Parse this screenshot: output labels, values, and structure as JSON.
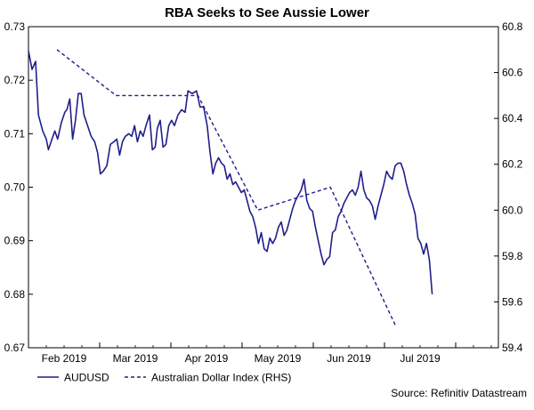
{
  "chart_data": {
    "type": "line",
    "title": "RBA Seeks to See Aussie Lower",
    "source": "Source: Refinitiv Datastream",
    "x_ticks": [
      "Feb 2019",
      "Mar 2019",
      "Apr 2019",
      "May 2019",
      "Jun 2019",
      "Jul 2019"
    ],
    "y_left": {
      "min": 0.67,
      "max": 0.73,
      "ticks": [
        "0.67",
        "0.68",
        "0.69",
        "0.70",
        "0.71",
        "0.72",
        "0.73"
      ]
    },
    "y_right": {
      "min": 59.4,
      "max": 60.8,
      "ticks": [
        "59.4",
        "59.6",
        "59.8",
        "60.0",
        "60.2",
        "60.4",
        "60.6",
        "60.8"
      ]
    },
    "legend": [
      {
        "label": "AUDUSD",
        "style": "solid"
      },
      {
        "label": "Australian Dollar Index (RHS)",
        "style": "dashed"
      }
    ],
    "colors": {
      "line": "#1f1f8c",
      "axis": "#000000",
      "text": "#000000"
    },
    "x_domain": [
      0,
      6.6
    ],
    "series": [
      {
        "name": "AUDUSD",
        "axis": "left",
        "points": [
          [
            0.0,
            0.7255
          ],
          [
            0.05,
            0.722
          ],
          [
            0.1,
            0.7235
          ],
          [
            0.14,
            0.7135
          ],
          [
            0.2,
            0.7105
          ],
          [
            0.25,
            0.709
          ],
          [
            0.28,
            0.707
          ],
          [
            0.33,
            0.709
          ],
          [
            0.37,
            0.7105
          ],
          [
            0.41,
            0.709
          ],
          [
            0.46,
            0.712
          ],
          [
            0.51,
            0.714
          ],
          [
            0.54,
            0.7145
          ],
          [
            0.58,
            0.7165
          ],
          [
            0.62,
            0.709
          ],
          [
            0.66,
            0.7125
          ],
          [
            0.7,
            0.7175
          ],
          [
            0.74,
            0.7175
          ],
          [
            0.78,
            0.7135
          ],
          [
            0.83,
            0.7115
          ],
          [
            0.88,
            0.7095
          ],
          [
            0.93,
            0.7085
          ],
          [
            0.97,
            0.7065
          ],
          [
            1.01,
            0.7025
          ],
          [
            1.05,
            0.703
          ],
          [
            1.1,
            0.704
          ],
          [
            1.15,
            0.708
          ],
          [
            1.2,
            0.7085
          ],
          [
            1.24,
            0.709
          ],
          [
            1.28,
            0.706
          ],
          [
            1.32,
            0.7085
          ],
          [
            1.36,
            0.7095
          ],
          [
            1.41,
            0.71
          ],
          [
            1.45,
            0.7095
          ],
          [
            1.49,
            0.7115
          ],
          [
            1.53,
            0.7085
          ],
          [
            1.57,
            0.7105
          ],
          [
            1.61,
            0.7095
          ],
          [
            1.65,
            0.7115
          ],
          [
            1.7,
            0.7135
          ],
          [
            1.74,
            0.707
          ],
          [
            1.78,
            0.7075
          ],
          [
            1.81,
            0.711
          ],
          [
            1.85,
            0.7125
          ],
          [
            1.89,
            0.7075
          ],
          [
            1.93,
            0.708
          ],
          [
            1.97,
            0.7115
          ],
          [
            2.01,
            0.7125
          ],
          [
            2.05,
            0.7115
          ],
          [
            2.1,
            0.7135
          ],
          [
            2.15,
            0.7145
          ],
          [
            2.2,
            0.714
          ],
          [
            2.24,
            0.718
          ],
          [
            2.3,
            0.7175
          ],
          [
            2.36,
            0.718
          ],
          [
            2.41,
            0.715
          ],
          [
            2.46,
            0.715
          ],
          [
            2.51,
            0.7115
          ],
          [
            2.55,
            0.7065
          ],
          [
            2.59,
            0.7025
          ],
          [
            2.63,
            0.7045
          ],
          [
            2.67,
            0.7055
          ],
          [
            2.71,
            0.7045
          ],
          [
            2.75,
            0.704
          ],
          [
            2.79,
            0.7015
          ],
          [
            2.83,
            0.7025
          ],
          [
            2.87,
            0.7005
          ],
          [
            2.91,
            0.701
          ],
          [
            2.95,
            0.7
          ],
          [
            2.99,
            0.699
          ],
          [
            3.03,
            0.6995
          ],
          [
            3.07,
            0.6975
          ],
          [
            3.11,
            0.6955
          ],
          [
            3.15,
            0.6945
          ],
          [
            3.19,
            0.6925
          ],
          [
            3.23,
            0.6895
          ],
          [
            3.27,
            0.6915
          ],
          [
            3.31,
            0.6885
          ],
          [
            3.35,
            0.688
          ],
          [
            3.39,
            0.6905
          ],
          [
            3.43,
            0.6895
          ],
          [
            3.47,
            0.6905
          ],
          [
            3.51,
            0.6925
          ],
          [
            3.55,
            0.6935
          ],
          [
            3.59,
            0.691
          ],
          [
            3.63,
            0.692
          ],
          [
            3.67,
            0.694
          ],
          [
            3.71,
            0.696
          ],
          [
            3.75,
            0.6975
          ],
          [
            3.79,
            0.6985
          ],
          [
            3.83,
            0.6995
          ],
          [
            3.87,
            0.7015
          ],
          [
            3.91,
            0.6975
          ],
          [
            3.95,
            0.696
          ],
          [
            3.99,
            0.6955
          ],
          [
            4.03,
            0.6925
          ],
          [
            4.07,
            0.69
          ],
          [
            4.11,
            0.6875
          ],
          [
            4.15,
            0.6855
          ],
          [
            4.19,
            0.6865
          ],
          [
            4.23,
            0.687
          ],
          [
            4.27,
            0.6915
          ],
          [
            4.31,
            0.692
          ],
          [
            4.35,
            0.6945
          ],
          [
            4.39,
            0.6955
          ],
          [
            4.43,
            0.697
          ],
          [
            4.47,
            0.698
          ],
          [
            4.51,
            0.699
          ],
          [
            4.55,
            0.6995
          ],
          [
            4.59,
            0.6985
          ],
          [
            4.63,
            0.7
          ],
          [
            4.67,
            0.703
          ],
          [
            4.71,
            0.6995
          ],
          [
            4.75,
            0.698
          ],
          [
            4.79,
            0.6975
          ],
          [
            4.83,
            0.6965
          ],
          [
            4.87,
            0.694
          ],
          [
            4.91,
            0.6965
          ],
          [
            4.95,
            0.6985
          ],
          [
            4.99,
            0.7005
          ],
          [
            5.03,
            0.703
          ],
          [
            5.07,
            0.702
          ],
          [
            5.11,
            0.7015
          ],
          [
            5.15,
            0.704
          ],
          [
            5.19,
            0.7045
          ],
          [
            5.23,
            0.7045
          ],
          [
            5.27,
            0.703
          ],
          [
            5.31,
            0.7005
          ],
          [
            5.35,
            0.6985
          ],
          [
            5.39,
            0.697
          ],
          [
            5.43,
            0.695
          ],
          [
            5.47,
            0.6905
          ],
          [
            5.51,
            0.6895
          ],
          [
            5.55,
            0.6875
          ],
          [
            5.59,
            0.6895
          ],
          [
            5.63,
            0.6865
          ],
          [
            5.67,
            0.68
          ]
        ]
      },
      {
        "name": "Australian Dollar Index (RHS)",
        "axis": "right",
        "points": [
          [
            0.4,
            60.7
          ],
          [
            1.23,
            60.5
          ],
          [
            2.38,
            60.5
          ],
          [
            3.22,
            60.0
          ],
          [
            4.24,
            60.1
          ],
          [
            5.15,
            59.5
          ]
        ]
      }
    ]
  }
}
